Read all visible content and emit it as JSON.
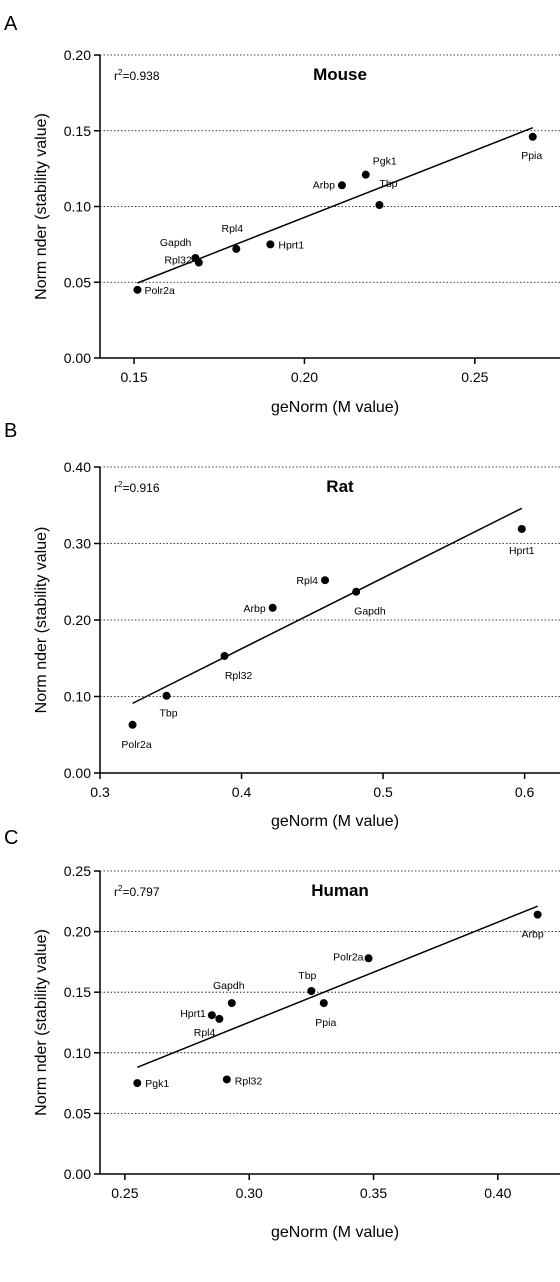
{
  "chart_data": [
    {
      "type": "scatter",
      "panel": "A",
      "title": "Mouse",
      "r2_base": "r",
      "r2_exp": "2",
      "r2_value": "=0.938",
      "xlabel": "geNorm (M value)",
      "ylabel": "Norm nder (stability value)",
      "xlim": [
        0.14,
        0.275
      ],
      "ylim": [
        0,
        0.2
      ],
      "xticks": [
        0.15,
        0.2,
        0.25
      ],
      "xtick_labels": [
        "0.15",
        "0.20",
        "0.25"
      ],
      "yticks": [
        0,
        0.05,
        0.1,
        0.15,
        0.2
      ],
      "ytick_labels": [
        "0.00",
        "0.05",
        "0.10",
        "0.15",
        "0.20"
      ],
      "grid": "horizontal dotted",
      "points": [
        {
          "label": "Polr2a",
          "x": 0.151,
          "y": 0.045,
          "lx": 7,
          "ly": 4,
          "anchor": "start"
        },
        {
          "label": "Rpl32",
          "x": 0.169,
          "y": 0.063,
          "lx": -7,
          "ly": 1,
          "anchor": "end"
        },
        {
          "label": "Gapdh",
          "x": 0.168,
          "y": 0.066,
          "lx": -4,
          "ly": -12,
          "anchor": "end"
        },
        {
          "label": "Rpl4",
          "x": 0.18,
          "y": 0.072,
          "lx": -4,
          "ly": -17,
          "anchor": "middle"
        },
        {
          "label": "Hprt1",
          "x": 0.19,
          "y": 0.075,
          "lx": 8,
          "ly": 4,
          "anchor": "start"
        },
        {
          "label": "Arbp",
          "x": 0.211,
          "y": 0.114,
          "lx": -7,
          "ly": 3,
          "anchor": "end"
        },
        {
          "label": "Pgk1",
          "x": 0.218,
          "y": 0.121,
          "lx": 7,
          "ly": -10,
          "anchor": "start"
        },
        {
          "label": "Tbp",
          "x": 0.222,
          "y": 0.101,
          "lx": 0,
          "ly": -18,
          "anchor": "start"
        },
        {
          "label": "Ppia",
          "x": 0.267,
          "y": 0.146,
          "lx": -1,
          "ly": 22,
          "anchor": "middle"
        }
      ],
      "fit": {
        "x": [
          0.151,
          0.267
        ],
        "y": [
          0.0495,
          0.152
        ]
      }
    },
    {
      "type": "scatter",
      "panel": "B",
      "title": "Rat",
      "r2_base": "r",
      "r2_exp": "2",
      "r2_value": "=0.916",
      "xlabel": "geNorm (M value)",
      "ylabel": "Norm nder (stability value)",
      "xlim": [
        0.3,
        0.625
      ],
      "ylim": [
        0,
        0.4
      ],
      "xticks": [
        0.3,
        0.4,
        0.5,
        0.6
      ],
      "xtick_labels": [
        "0.3",
        "0.4",
        "0.5",
        "0.6"
      ],
      "yticks": [
        0,
        0.1,
        0.2,
        0.3,
        0.4
      ],
      "ytick_labels": [
        "0.00",
        "0.10",
        "0.20",
        "0.30",
        "0.40"
      ],
      "grid": "horizontal dotted",
      "points": [
        {
          "label": "Polr2a",
          "x": 0.323,
          "y": 0.063,
          "lx": 4,
          "ly": 23,
          "anchor": "middle"
        },
        {
          "label": "Tbp",
          "x": 0.347,
          "y": 0.101,
          "lx": 2,
          "ly": 21,
          "anchor": "middle"
        },
        {
          "label": "Rpl32",
          "x": 0.388,
          "y": 0.153,
          "lx": 14,
          "ly": 23,
          "anchor": "middle"
        },
        {
          "label": "Arbp",
          "x": 0.422,
          "y": 0.216,
          "lx": -7,
          "ly": 4,
          "anchor": "end"
        },
        {
          "label": "Rpl4",
          "x": 0.459,
          "y": 0.252,
          "lx": -7,
          "ly": 4,
          "anchor": "end"
        },
        {
          "label": "Gapdh",
          "x": 0.481,
          "y": 0.237,
          "lx": -2,
          "ly": 23,
          "anchor": "start"
        },
        {
          "label": "Hprt1",
          "x": 0.598,
          "y": 0.319,
          "lx": 0,
          "ly": 25,
          "anchor": "middle"
        }
      ],
      "fit": {
        "x": [
          0.323,
          0.598
        ],
        "y": [
          0.091,
          0.346
        ]
      }
    },
    {
      "type": "scatter",
      "panel": "C",
      "title": "Human",
      "r2_base": "r",
      "r2_exp": "2",
      "r2_value": "=0.797",
      "xlabel": "geNorm (M value)",
      "ylabel": "Norm nder (stability value)",
      "xlim": [
        0.24,
        0.425
      ],
      "ylim": [
        0,
        0.25
      ],
      "xticks": [
        0.25,
        0.3,
        0.35,
        0.4
      ],
      "xtick_labels": [
        "0.25",
        "0.30",
        "0.35",
        "0.40"
      ],
      "yticks": [
        0,
        0.05,
        0.1,
        0.15,
        0.2,
        0.25
      ],
      "ytick_labels": [
        "0.00",
        "0.05",
        "0.10",
        "0.15",
        "0.20",
        "0.25"
      ],
      "grid": "horizontal dotted",
      "points": [
        {
          "label": "Pgk1",
          "x": 0.255,
          "y": 0.075,
          "lx": 8,
          "ly": 4,
          "anchor": "start"
        },
        {
          "label": "Hprt1",
          "x": 0.285,
          "y": 0.131,
          "lx": -6,
          "ly": 2,
          "anchor": "end"
        },
        {
          "label": "Rpl4",
          "x": 0.288,
          "y": 0.128,
          "lx": -4,
          "ly": 17,
          "anchor": "end"
        },
        {
          "label": "Rpl32",
          "x": 0.291,
          "y": 0.078,
          "lx": 8,
          "ly": 5,
          "anchor": "start"
        },
        {
          "label": "Gapdh",
          "x": 0.293,
          "y": 0.141,
          "lx": -3,
          "ly": -14,
          "anchor": "middle"
        },
        {
          "label": "Tbp",
          "x": 0.325,
          "y": 0.151,
          "lx": -4,
          "ly": -12,
          "anchor": "middle"
        },
        {
          "label": "Ppia",
          "x": 0.33,
          "y": 0.141,
          "lx": 2,
          "ly": 23,
          "anchor": "middle"
        },
        {
          "label": "Polr2a",
          "x": 0.348,
          "y": 0.178,
          "lx": -5,
          "ly": 2,
          "anchor": "end"
        },
        {
          "label": "Arbp",
          "x": 0.416,
          "y": 0.214,
          "lx": -5,
          "ly": 23,
          "anchor": "middle"
        }
      ],
      "fit": {
        "x": [
          0.255,
          0.416
        ],
        "y": [
          0.088,
          0.221
        ]
      }
    }
  ]
}
